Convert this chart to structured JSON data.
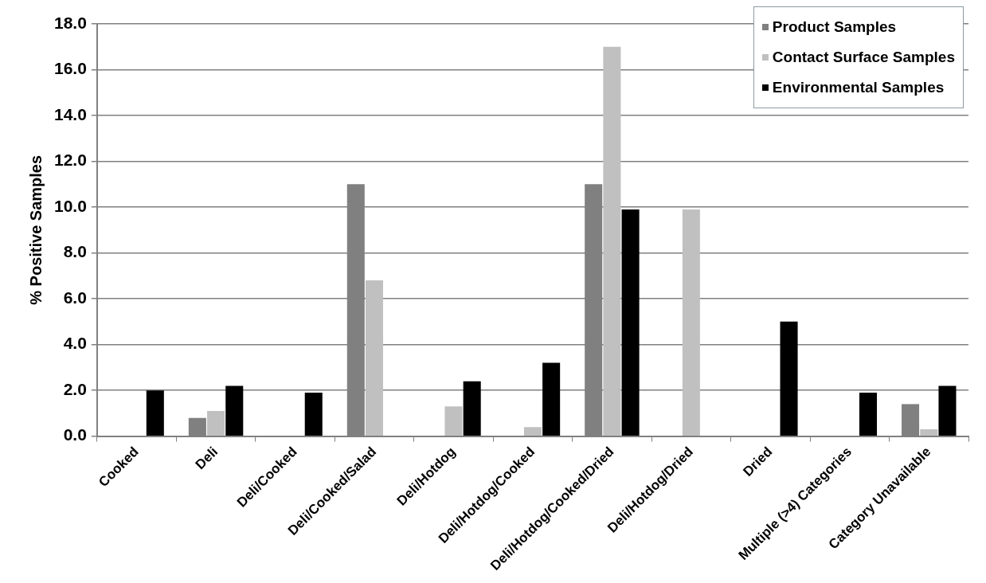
{
  "chart_data": {
    "type": "bar",
    "ylabel": "% Positive Samples",
    "categories": [
      "Cooked",
      "Deli",
      "Deli/Cooked",
      "Deli/Cooked/Salad",
      "Deli/Hotdog",
      "Deli/Hotdog/Cooked",
      "Deli/Hotdog/Cooked/Dried",
      "Deli/Hotdog/Dried",
      "Dried",
      "Multiple (>4) Categories",
      "Category Unavailable"
    ],
    "series": [
      {
        "name": "Product Samples",
        "color": "#808080",
        "values": [
          0,
          0.8,
          0,
          11.0,
          0,
          0,
          11.0,
          0,
          0,
          0,
          1.4
        ]
      },
      {
        "name": "Contact Surface Samples",
        "color": "#c0c0c0",
        "values": [
          0,
          1.1,
          0,
          6.8,
          1.3,
          0.4,
          17.0,
          9.9,
          0,
          0,
          0.3
        ]
      },
      {
        "name": "Environmental Samples",
        "color": "#000000",
        "values": [
          2.0,
          2.2,
          1.9,
          0,
          2.4,
          3.2,
          9.9,
          0,
          5.0,
          1.9,
          2.2
        ]
      }
    ],
    "ylim": [
      0,
      18
    ],
    "yticks": [
      {
        "value": 0,
        "label": "0.0"
      },
      {
        "value": 2,
        "label": "2.0"
      },
      {
        "value": 4,
        "label": "4.0"
      },
      {
        "value": 6,
        "label": "6.0"
      },
      {
        "value": 8,
        "label": "8.0"
      },
      {
        "value": 10,
        "label": "10.0"
      },
      {
        "value": 12,
        "label": "12.0"
      },
      {
        "value": 14,
        "label": "14.0"
      },
      {
        "value": 16,
        "label": "16.0"
      },
      {
        "value": 18,
        "label": "18.0"
      }
    ],
    "grid": "y",
    "legend": "top right"
  }
}
